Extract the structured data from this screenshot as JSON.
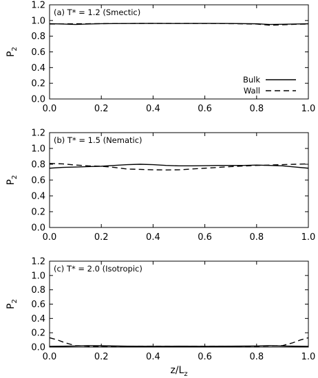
{
  "chart_data": [
    {
      "type": "line",
      "title": "(a) T* = 1.2 (Smectic)",
      "xlabel": "",
      "ylabel_main": "P",
      "ylabel_sub": "2",
      "xlim": [
        0.0,
        1.0
      ],
      "ylim": [
        0.0,
        1.2
      ],
      "xticks": [
        "0.0",
        "0.2",
        "0.4",
        "0.6",
        "0.8",
        "1.0"
      ],
      "yticks": [
        "0.0",
        "0.2",
        "0.4",
        "0.6",
        "0.8",
        "1.0",
        "1.2"
      ],
      "legend": {
        "position": "bottom-right",
        "entries": [
          "Bulk",
          "Wall"
        ]
      },
      "series": [
        {
          "name": "Bulk",
          "style": "solid",
          "x": [
            0.0,
            0.05,
            0.1,
            0.15,
            0.2,
            0.3,
            0.4,
            0.5,
            0.6,
            0.7,
            0.8,
            0.85,
            0.9,
            0.95,
            1.0
          ],
          "y": [
            0.96,
            0.955,
            0.95,
            0.955,
            0.96,
            0.962,
            0.963,
            0.962,
            0.963,
            0.962,
            0.958,
            0.95,
            0.952,
            0.955,
            0.958
          ]
        },
        {
          "name": "Wall",
          "style": "dashed",
          "x": [
            0.0,
            0.1,
            0.2,
            0.3,
            0.4,
            0.5,
            0.6,
            0.7,
            0.8,
            0.85,
            0.9,
            0.95,
            1.0
          ],
          "y": [
            0.955,
            0.958,
            0.96,
            0.962,
            0.963,
            0.963,
            0.962,
            0.96,
            0.955,
            0.94,
            0.945,
            0.952,
            0.955
          ]
        }
      ]
    },
    {
      "type": "line",
      "title": "(b) T* = 1.5 (Nematic)",
      "xlabel": "",
      "ylabel_main": "P",
      "ylabel_sub": "2",
      "xlim": [
        0.0,
        1.0
      ],
      "ylim": [
        0.0,
        1.2
      ],
      "xticks": [
        "0.0",
        "0.2",
        "0.4",
        "0.6",
        "0.8",
        "1.0"
      ],
      "yticks": [
        "0.0",
        "0.2",
        "0.4",
        "0.6",
        "0.8",
        "1.0",
        "1.2"
      ],
      "series": [
        {
          "name": "Bulk",
          "style": "solid",
          "x": [
            0.0,
            0.05,
            0.1,
            0.15,
            0.2,
            0.25,
            0.3,
            0.35,
            0.4,
            0.45,
            0.5,
            0.55,
            0.6,
            0.65,
            0.7,
            0.75,
            0.8,
            0.85,
            0.9,
            0.95,
            1.0
          ],
          "y": [
            0.75,
            0.76,
            0.765,
            0.77,
            0.775,
            0.785,
            0.795,
            0.8,
            0.795,
            0.785,
            0.78,
            0.78,
            0.782,
            0.785,
            0.785,
            0.785,
            0.79,
            0.785,
            0.78,
            0.765,
            0.75
          ]
        },
        {
          "name": "Wall",
          "style": "dashed",
          "x": [
            0.0,
            0.05,
            0.1,
            0.15,
            0.2,
            0.25,
            0.3,
            0.35,
            0.4,
            0.45,
            0.5,
            0.55,
            0.6,
            0.65,
            0.7,
            0.75,
            0.8,
            0.85,
            0.9,
            0.95,
            1.0
          ],
          "y": [
            0.81,
            0.805,
            0.79,
            0.78,
            0.775,
            0.76,
            0.74,
            0.735,
            0.73,
            0.728,
            0.73,
            0.74,
            0.75,
            0.76,
            0.77,
            0.778,
            0.785,
            0.79,
            0.795,
            0.8,
            0.805
          ]
        }
      ]
    },
    {
      "type": "line",
      "title": "(c) T* = 2.0 (Isotropic)",
      "xlabel_main": "z/L",
      "xlabel_sub": "z",
      "ylabel_main": "P",
      "ylabel_sub": "2",
      "xlim": [
        0.0,
        1.0
      ],
      "ylim": [
        0.0,
        1.2
      ],
      "xticks": [
        "0.0",
        "0.2",
        "0.4",
        "0.6",
        "0.8",
        "1.0"
      ],
      "yticks": [
        "0.0",
        "0.2",
        "0.4",
        "0.6",
        "0.8",
        "1.0",
        "1.2"
      ],
      "series": [
        {
          "name": "Bulk",
          "style": "solid",
          "x": [
            0.0,
            0.05,
            0.1,
            0.15,
            0.2,
            0.3,
            0.4,
            0.5,
            0.6,
            0.7,
            0.8,
            0.85,
            0.9,
            0.95,
            1.0
          ],
          "y": [
            0.01,
            0.012,
            0.015,
            0.02,
            0.018,
            0.012,
            0.01,
            0.012,
            0.01,
            0.012,
            0.015,
            0.02,
            0.015,
            0.012,
            0.01
          ]
        },
        {
          "name": "Wall",
          "style": "dashed",
          "x": [
            0.0,
            0.03,
            0.06,
            0.1,
            0.15,
            0.2,
            0.3,
            0.4,
            0.5,
            0.6,
            0.7,
            0.8,
            0.9,
            0.94,
            0.97,
            1.0
          ],
          "y": [
            0.13,
            0.1,
            0.06,
            0.02,
            0.012,
            0.01,
            0.01,
            0.012,
            0.01,
            0.01,
            0.012,
            0.012,
            0.02,
            0.06,
            0.1,
            0.13
          ]
        }
      ]
    }
  ]
}
